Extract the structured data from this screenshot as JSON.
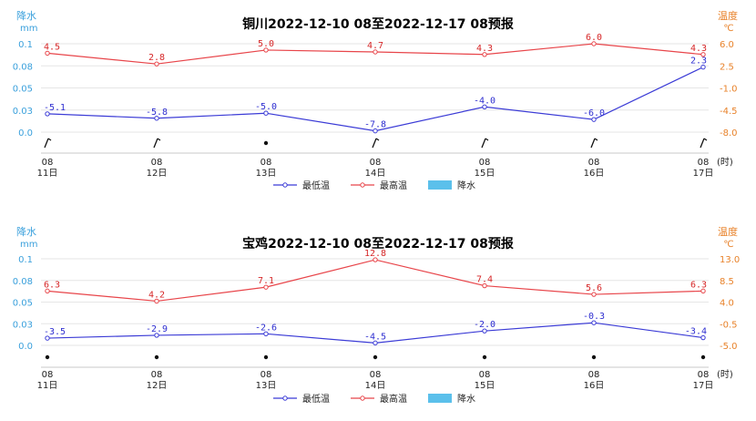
{
  "colors": {
    "low": "#3b3bd6",
    "high": "#e8454a",
    "rain": "#5bc0eb",
    "left_axis": "#3aa0dc",
    "right_axis": "#e8822a"
  },
  "chart_data": [
    {
      "type": "line",
      "title": "铜川2022-12-10 08至2022-12-17 08预报",
      "ylabel_left": "降水",
      "yunit_left": "mm",
      "ylabel_right": "温度",
      "yunit_right": "℃",
      "left_ticks": [
        "0.1",
        "0.08",
        "0.05",
        "0.03",
        "0.0"
      ],
      "left_range": [
        0,
        0.1
      ],
      "right_ticks": [
        "6.0",
        "2.5",
        "-1.0",
        "-4.5",
        "-8.0"
      ],
      "right_range": [
        -8,
        6
      ],
      "x_hour": [
        "08",
        "08",
        "08",
        "08",
        "08",
        "08",
        "08"
      ],
      "x_day": [
        "11日",
        "12日",
        "13日",
        "14日",
        "15日",
        "16日",
        "17日"
      ],
      "x_suffix": "(时)",
      "weather_icons": [
        "wind-icon",
        "wind-icon",
        "dot-icon",
        "wind-icon",
        "wind-icon",
        "wind-icon",
        "wind-icon"
      ],
      "series": [
        {
          "name": "最低温",
          "values": [
            -5.1,
            -5.8,
            -5.0,
            -7.8,
            -4.0,
            -6.0,
            2.3
          ],
          "labels": [
            "-5.1",
            "-5.8",
            "-5.0",
            "-7.8",
            "-4.0",
            "-6.0",
            "2.3"
          ]
        },
        {
          "name": "最高温",
          "values": [
            4.5,
            2.8,
            5.0,
            4.7,
            4.3,
            6.0,
            4.3
          ],
          "labels": [
            "4.5",
            "2.8",
            "5.0",
            "4.7",
            "4.3",
            "6.0",
            "4.3"
          ]
        }
      ],
      "legend": [
        "最低温",
        "最高温",
        "降水"
      ],
      "legend_position": "bottom-center"
    },
    {
      "type": "line",
      "title": "宝鸡2022-12-10 08至2022-12-17 08预报",
      "ylabel_left": "降水",
      "yunit_left": "mm",
      "ylabel_right": "温度",
      "yunit_right": "℃",
      "left_ticks": [
        "0.1",
        "0.08",
        "0.05",
        "0.03",
        "0.0"
      ],
      "left_range": [
        0,
        0.1
      ],
      "right_ticks": [
        "13.0",
        "8.5",
        "4.0",
        "-0.5",
        "-5.0"
      ],
      "right_range": [
        -5,
        13
      ],
      "x_hour": [
        "08",
        "08",
        "08",
        "08",
        "08",
        "08",
        "08"
      ],
      "x_day": [
        "11日",
        "12日",
        "13日",
        "14日",
        "15日",
        "16日",
        "17日"
      ],
      "x_suffix": "(时)",
      "weather_icons": [
        "dot-icon",
        "dot-icon",
        "dot-icon",
        "dot-icon",
        "dot-icon",
        "dot-icon",
        "dot-icon"
      ],
      "series": [
        {
          "name": "最低温",
          "values": [
            -3.5,
            -2.9,
            -2.6,
            -4.5,
            -2.0,
            -0.3,
            -3.4
          ],
          "labels": [
            "-3.5",
            "-2.9",
            "-2.6",
            "-4.5",
            "-2.0",
            "-0.3",
            "-3.4"
          ]
        },
        {
          "name": "最高温",
          "values": [
            6.3,
            4.2,
            7.1,
            12.8,
            7.4,
            5.6,
            6.3
          ],
          "labels": [
            "6.3",
            "4.2",
            "7.1",
            "12.8",
            "7.4",
            "5.6",
            "6.3"
          ]
        }
      ],
      "legend": [
        "最低温",
        "最高温",
        "降水"
      ],
      "legend_position": "bottom-center"
    }
  ]
}
